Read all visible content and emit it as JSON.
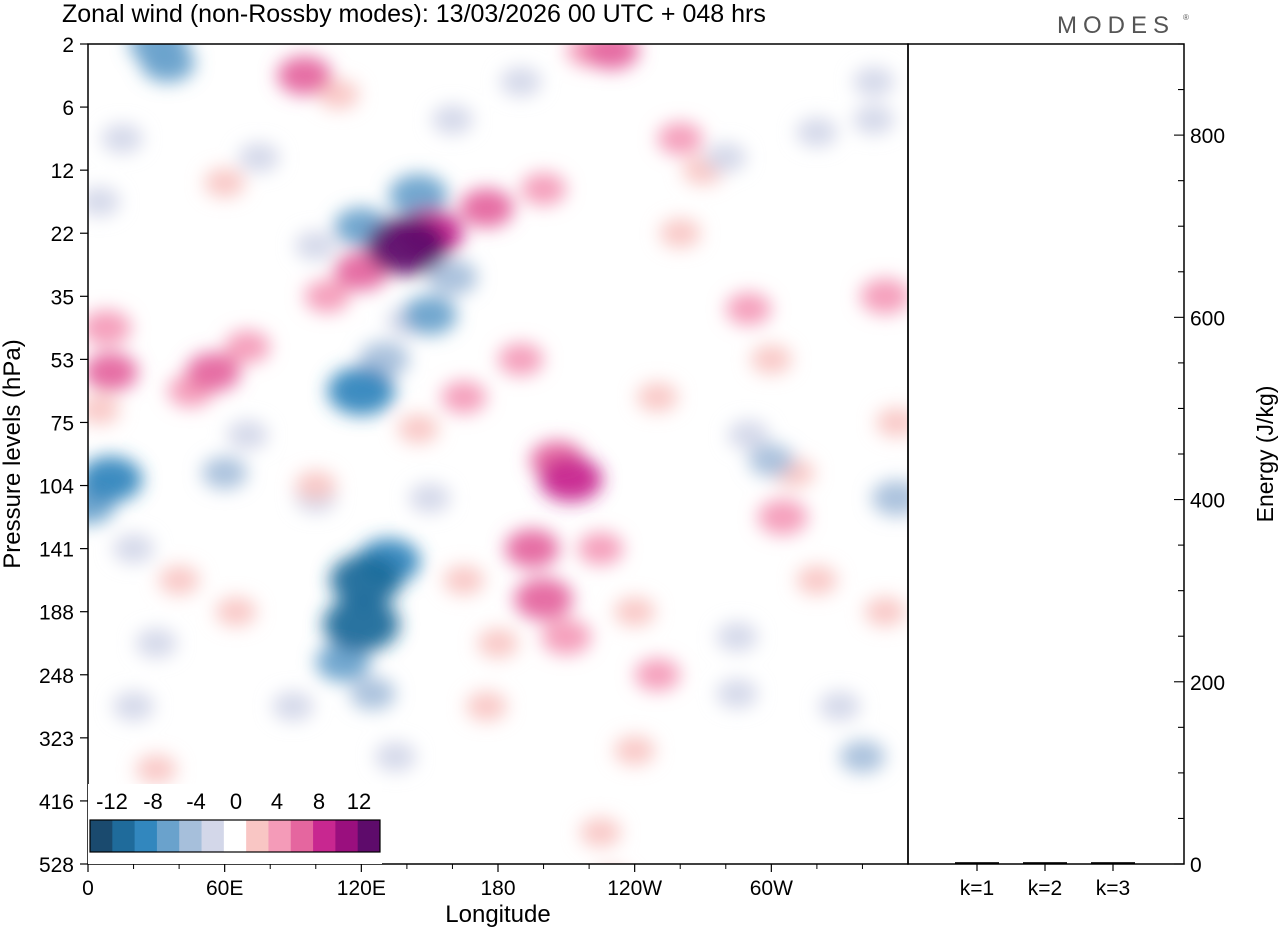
{
  "chart_data": {
    "type": "heatmap",
    "title": "Zonal wind (non-Rossby modes):  13/03/2026  00 UTC  + 048 hrs",
    "logo": "MODES",
    "xlabel": "Longitude",
    "ylabel": "Pressure levels (hPa)",
    "y2label": "Energy (J/kg)",
    "x_ticks": [
      "0",
      "60E",
      "120E",
      "180",
      "120W",
      "60W"
    ],
    "x_tick_values": [
      0,
      60,
      120,
      180,
      240,
      300
    ],
    "xlim": [
      0,
      360
    ],
    "y_ticks": [
      "2",
      "6",
      "12",
      "22",
      "35",
      "53",
      "75",
      "104",
      "141",
      "188",
      "248",
      "323",
      "416",
      "528"
    ],
    "y2_ticks": [
      "0",
      "200",
      "400",
      "600",
      "800"
    ],
    "y2_tick_values": [
      0,
      200,
      400,
      600,
      800
    ],
    "y2lim": [
      0,
      900
    ],
    "colorbar": {
      "labels": [
        "-12",
        "-8",
        "-4",
        "0",
        "4",
        "8",
        "12"
      ],
      "colors": [
        "#1a4a6e",
        "#1f6b9b",
        "#3287be",
        "#6aa2cc",
        "#a6bfdb",
        "#d3d7e9",
        "#ffffff",
        "#f9c6c4",
        "#f49bb8",
        "#e5669f",
        "#c82790",
        "#9a0f7e",
        "#5e0b6b"
      ]
    },
    "energy_bars": {
      "categories": [
        "k=1",
        "k=2",
        "k=3"
      ],
      "values": [
        2,
        2,
        2
      ]
    },
    "features": [
      {
        "lon": 35,
        "lev": 0.3,
        "v": -6
      },
      {
        "lon": 31,
        "lev": 0.0,
        "v": -7
      },
      {
        "lon": 95,
        "lev": 0.5,
        "v": 6
      },
      {
        "lon": 110,
        "lev": 0.8,
        "v": 3
      },
      {
        "lon": 230,
        "lev": 0.1,
        "v": 6
      },
      {
        "lon": 220,
        "lev": 0.1,
        "v": 4
      },
      {
        "lon": 160,
        "lev": 1.2,
        "v": -3
      },
      {
        "lon": 190,
        "lev": 0.6,
        "v": -3
      },
      {
        "lon": 345,
        "lev": 1.2,
        "v": -3
      },
      {
        "lon": 260,
        "lev": 1.5,
        "v": 4
      },
      {
        "lon": 270,
        "lev": 2.0,
        "v": 3
      },
      {
        "lon": 200,
        "lev": 2.3,
        "v": 4
      },
      {
        "lon": 175,
        "lev": 2.6,
        "v": 6
      },
      {
        "lon": 150,
        "lev": 3.0,
        "v": 9
      },
      {
        "lon": 140,
        "lev": 3.2,
        "v": 12
      },
      {
        "lon": 120,
        "lev": 3.6,
        "v": 6
      },
      {
        "lon": 105,
        "lev": 4.0,
        "v": 4
      },
      {
        "lon": 145,
        "lev": 2.4,
        "v": -7
      },
      {
        "lon": 120,
        "lev": 2.9,
        "v": -6
      },
      {
        "lon": 100,
        "lev": 3.2,
        "v": -3
      },
      {
        "lon": 160,
        "lev": 3.7,
        "v": -5
      },
      {
        "lon": 150,
        "lev": 4.3,
        "v": -6
      },
      {
        "lon": 130,
        "lev": 5.0,
        "v": -5
      },
      {
        "lon": 120,
        "lev": 5.5,
        "v": -9
      },
      {
        "lon": 140,
        "lev": 4.4,
        "v": -3
      },
      {
        "lon": 190,
        "lev": 5.0,
        "v": 4
      },
      {
        "lon": 165,
        "lev": 5.6,
        "v": 4
      },
      {
        "lon": 145,
        "lev": 6.1,
        "v": 3
      },
      {
        "lon": 55,
        "lev": 5.2,
        "v": 6
      },
      {
        "lon": 70,
        "lev": 4.8,
        "v": 4
      },
      {
        "lon": 45,
        "lev": 5.5,
        "v": 4
      },
      {
        "lon": 8,
        "lev": 4.5,
        "v": 5
      },
      {
        "lon": 10,
        "lev": 5.2,
        "v": 6
      },
      {
        "lon": 5,
        "lev": 5.8,
        "v": 3
      },
      {
        "lon": 10,
        "lev": 6.9,
        "v": -8
      },
      {
        "lon": 0,
        "lev": 7.3,
        "v": -6
      },
      {
        "lon": 70,
        "lev": 6.2,
        "v": -3
      },
      {
        "lon": 60,
        "lev": 6.8,
        "v": -4
      },
      {
        "lon": 100,
        "lev": 7.2,
        "v": -3
      },
      {
        "lon": 122,
        "lev": 8.5,
        "v": -10
      },
      {
        "lon": 120,
        "lev": 9.2,
        "v": -11
      },
      {
        "lon": 132,
        "lev": 8.2,
        "v": -8
      },
      {
        "lon": 112,
        "lev": 9.8,
        "v": -6
      },
      {
        "lon": 125,
        "lev": 10.3,
        "v": -4
      },
      {
        "lon": 150,
        "lev": 7.2,
        "v": -3
      },
      {
        "lon": 135,
        "lev": 11.3,
        "v": -3
      },
      {
        "lon": 90,
        "lev": 10.5,
        "v": -3
      },
      {
        "lon": 30,
        "lev": 9.5,
        "v": -3
      },
      {
        "lon": 20,
        "lev": 10.5,
        "v": -3
      },
      {
        "lon": 20,
        "lev": 8.0,
        "v": -3
      },
      {
        "lon": 212,
        "lev": 6.9,
        "v": 8
      },
      {
        "lon": 206,
        "lev": 6.6,
        "v": 6
      },
      {
        "lon": 225,
        "lev": 8.0,
        "v": 4
      },
      {
        "lon": 240,
        "lev": 9.0,
        "v": 3
      },
      {
        "lon": 250,
        "lev": 10.0,
        "v": 4
      },
      {
        "lon": 240,
        "lev": 11.2,
        "v": 3
      },
      {
        "lon": 225,
        "lev": 12.5,
        "v": 3
      },
      {
        "lon": 230,
        "lev": 13.3,
        "v": 3
      },
      {
        "lon": 195,
        "lev": 8.0,
        "v": 6
      },
      {
        "lon": 200,
        "lev": 8.8,
        "v": 7
      },
      {
        "lon": 210,
        "lev": 9.4,
        "v": 5
      },
      {
        "lon": 180,
        "lev": 9.5,
        "v": 3
      },
      {
        "lon": 165,
        "lev": 8.5,
        "v": 3
      },
      {
        "lon": 175,
        "lev": 10.5,
        "v": 3
      },
      {
        "lon": 40,
        "lev": 8.5,
        "v": 3
      },
      {
        "lon": 65,
        "lev": 9.0,
        "v": 3
      },
      {
        "lon": 30,
        "lev": 11.5,
        "v": 3
      },
      {
        "lon": 100,
        "lev": 7.0,
        "v": 3
      },
      {
        "lon": 290,
        "lev": 6.2,
        "v": -3
      },
      {
        "lon": 300,
        "lev": 6.6,
        "v": -4
      },
      {
        "lon": 285,
        "lev": 9.4,
        "v": -3
      },
      {
        "lon": 285,
        "lev": 10.3,
        "v": -3
      },
      {
        "lon": 330,
        "lev": 10.5,
        "v": -3
      },
      {
        "lon": 340,
        "lev": 11.3,
        "v": -4
      },
      {
        "lon": 355,
        "lev": 7.2,
        "v": -5
      },
      {
        "lon": 310,
        "lev": 6.8,
        "v": 3
      },
      {
        "lon": 305,
        "lev": 7.5,
        "v": 5
      },
      {
        "lon": 320,
        "lev": 8.5,
        "v": 3
      },
      {
        "lon": 350,
        "lev": 9.0,
        "v": 3
      },
      {
        "lon": 290,
        "lev": 4.2,
        "v": 4
      },
      {
        "lon": 300,
        "lev": 5.0,
        "v": 3
      },
      {
        "lon": 350,
        "lev": 4.0,
        "v": 5
      },
      {
        "lon": 355,
        "lev": 6.0,
        "v": 3
      },
      {
        "lon": 260,
        "lev": 3.0,
        "v": 3
      },
      {
        "lon": 250,
        "lev": 5.6,
        "v": 3
      },
      {
        "lon": 345,
        "lev": 0.6,
        "v": -3
      },
      {
        "lon": 280,
        "lev": 1.8,
        "v": -3
      },
      {
        "lon": 320,
        "lev": 1.4,
        "v": -3
      },
      {
        "lon": 75,
        "lev": 1.8,
        "v": -3
      },
      {
        "lon": 60,
        "lev": 2.2,
        "v": 3
      },
      {
        "lon": 15,
        "lev": 1.5,
        "v": -3
      },
      {
        "lon": 5,
        "lev": 2.5,
        "v": -3
      }
    ]
  }
}
